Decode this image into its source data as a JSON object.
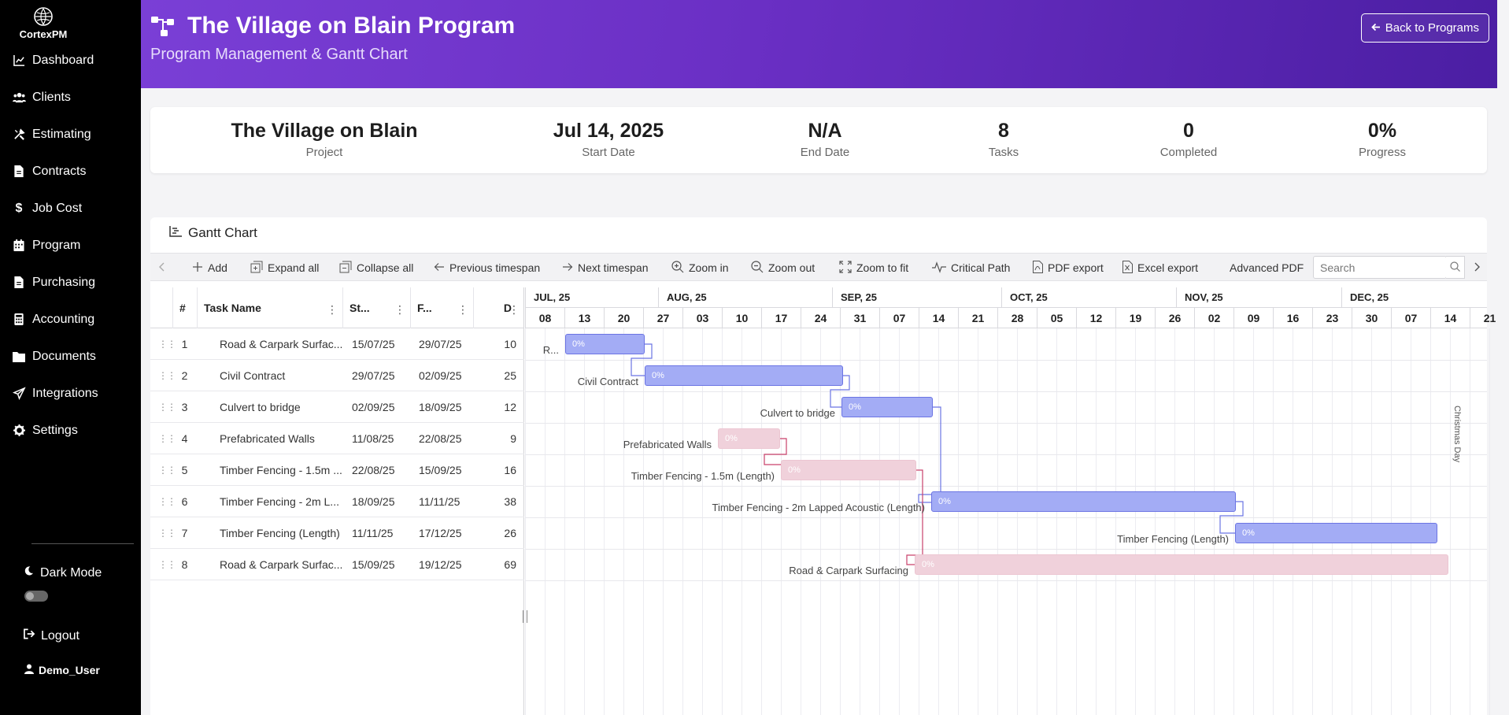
{
  "app": {
    "name": "CortexPM"
  },
  "sidebar": {
    "items": [
      {
        "label": "Dashboard",
        "icon": "chart-line-icon"
      },
      {
        "label": "Clients",
        "icon": "users-icon"
      },
      {
        "label": "Estimating",
        "icon": "tools-icon"
      },
      {
        "label": "Contracts",
        "icon": "document-icon"
      },
      {
        "label": "Job Cost",
        "icon": "dollar-icon"
      },
      {
        "label": "Program",
        "icon": "calendar-icon"
      },
      {
        "label": "Purchasing",
        "icon": "document-icon"
      },
      {
        "label": "Accounting",
        "icon": "calculator-icon"
      },
      {
        "label": "Documents",
        "icon": "folder-icon"
      },
      {
        "label": "Integrations",
        "icon": "send-icon"
      },
      {
        "label": "Settings",
        "icon": "gear-icon"
      }
    ],
    "dark_mode_label": "Dark Mode",
    "logout_label": "Logout",
    "user_name": "Demo_User"
  },
  "header": {
    "title": "The Village on Blain Program",
    "subtitle": "Program Management & Gantt Chart",
    "back_label": "Back to Programs"
  },
  "stats": [
    {
      "value": "The Village on Blain",
      "label": "Project"
    },
    {
      "value": "Jul 14, 2025",
      "label": "Start Date"
    },
    {
      "value": "N/A",
      "label": "End Date"
    },
    {
      "value": "8",
      "label": "Tasks"
    },
    {
      "value": "0",
      "label": "Completed"
    },
    {
      "value": "0%",
      "label": "Progress"
    }
  ],
  "gantt": {
    "title": "Gantt Chart",
    "toolbar": {
      "add": "Add",
      "expand_all": "Expand all",
      "collapse_all": "Collapse all",
      "previous_timespan": "Previous timespan",
      "next_timespan": "Next timespan",
      "zoom_in": "Zoom in",
      "zoom_out": "Zoom out",
      "zoom_to_fit": "Zoom to fit",
      "critical_path": "Critical Path",
      "pdf_export": "PDF export",
      "excel_export": "Excel export",
      "advanced_pdf": "Advanced PDF",
      "search_placeholder": "Search"
    },
    "columns": {
      "id": "#",
      "task_name": "Task Name",
      "start": "St...",
      "finish": "F...",
      "duration": "D"
    },
    "months": [
      "JUL, 25",
      "AUG, 25",
      "SEP, 25",
      "OCT, 25",
      "NOV, 25",
      "DEC, 25"
    ],
    "weeks": [
      "08",
      "13",
      "20",
      "27",
      "03",
      "10",
      "17",
      "24",
      "31",
      "07",
      "14",
      "21",
      "28",
      "05",
      "12",
      "19",
      "26",
      "02",
      "09",
      "16",
      "23",
      "30",
      "07",
      "14",
      "21"
    ],
    "holiday_label": "Christmas Day",
    "tasks": [
      {
        "id": "1",
        "name": "Road & Carpark Surfac...",
        "start": "15/07/25",
        "finish": "29/07/25",
        "duration": "10",
        "bar_label": "R...",
        "progress": "0%",
        "style": "blue"
      },
      {
        "id": "2",
        "name": "Civil Contract",
        "start": "29/07/25",
        "finish": "02/09/25",
        "duration": "25",
        "bar_label": "Civil Contract",
        "progress": "0%",
        "style": "blue"
      },
      {
        "id": "3",
        "name": "Culvert to bridge",
        "start": "02/09/25",
        "finish": "18/09/25",
        "duration": "12",
        "bar_label": "Culvert to bridge",
        "progress": "0%",
        "style": "blue"
      },
      {
        "id": "4",
        "name": "Prefabricated Walls",
        "start": "11/08/25",
        "finish": "22/08/25",
        "duration": "9",
        "bar_label": "Prefabricated Walls",
        "progress": "0%",
        "style": "pink"
      },
      {
        "id": "5",
        "name": "Timber Fencing - 1.5m ...",
        "start": "22/08/25",
        "finish": "15/09/25",
        "duration": "16",
        "bar_label": "Timber Fencing - 1.5m (Length)",
        "progress": "0%",
        "style": "pink"
      },
      {
        "id": "6",
        "name": "Timber Fencing - 2m L...",
        "start": "18/09/25",
        "finish": "11/11/25",
        "duration": "38",
        "bar_label": "Timber Fencing - 2m Lapped Acoustic (Length)",
        "progress": "0%",
        "style": "blue"
      },
      {
        "id": "7",
        "name": "Timber Fencing (Length)",
        "start": "11/11/25",
        "finish": "17/12/25",
        "duration": "26",
        "bar_label": "Timber Fencing (Length)",
        "progress": "0%",
        "style": "blue"
      },
      {
        "id": "8",
        "name": "Road & Carpark Surfac...",
        "start": "15/09/25",
        "finish": "19/12/25",
        "duration": "69",
        "bar_label": "Road & Carpark Surfacing",
        "progress": "0%",
        "style": "pink"
      }
    ]
  }
}
